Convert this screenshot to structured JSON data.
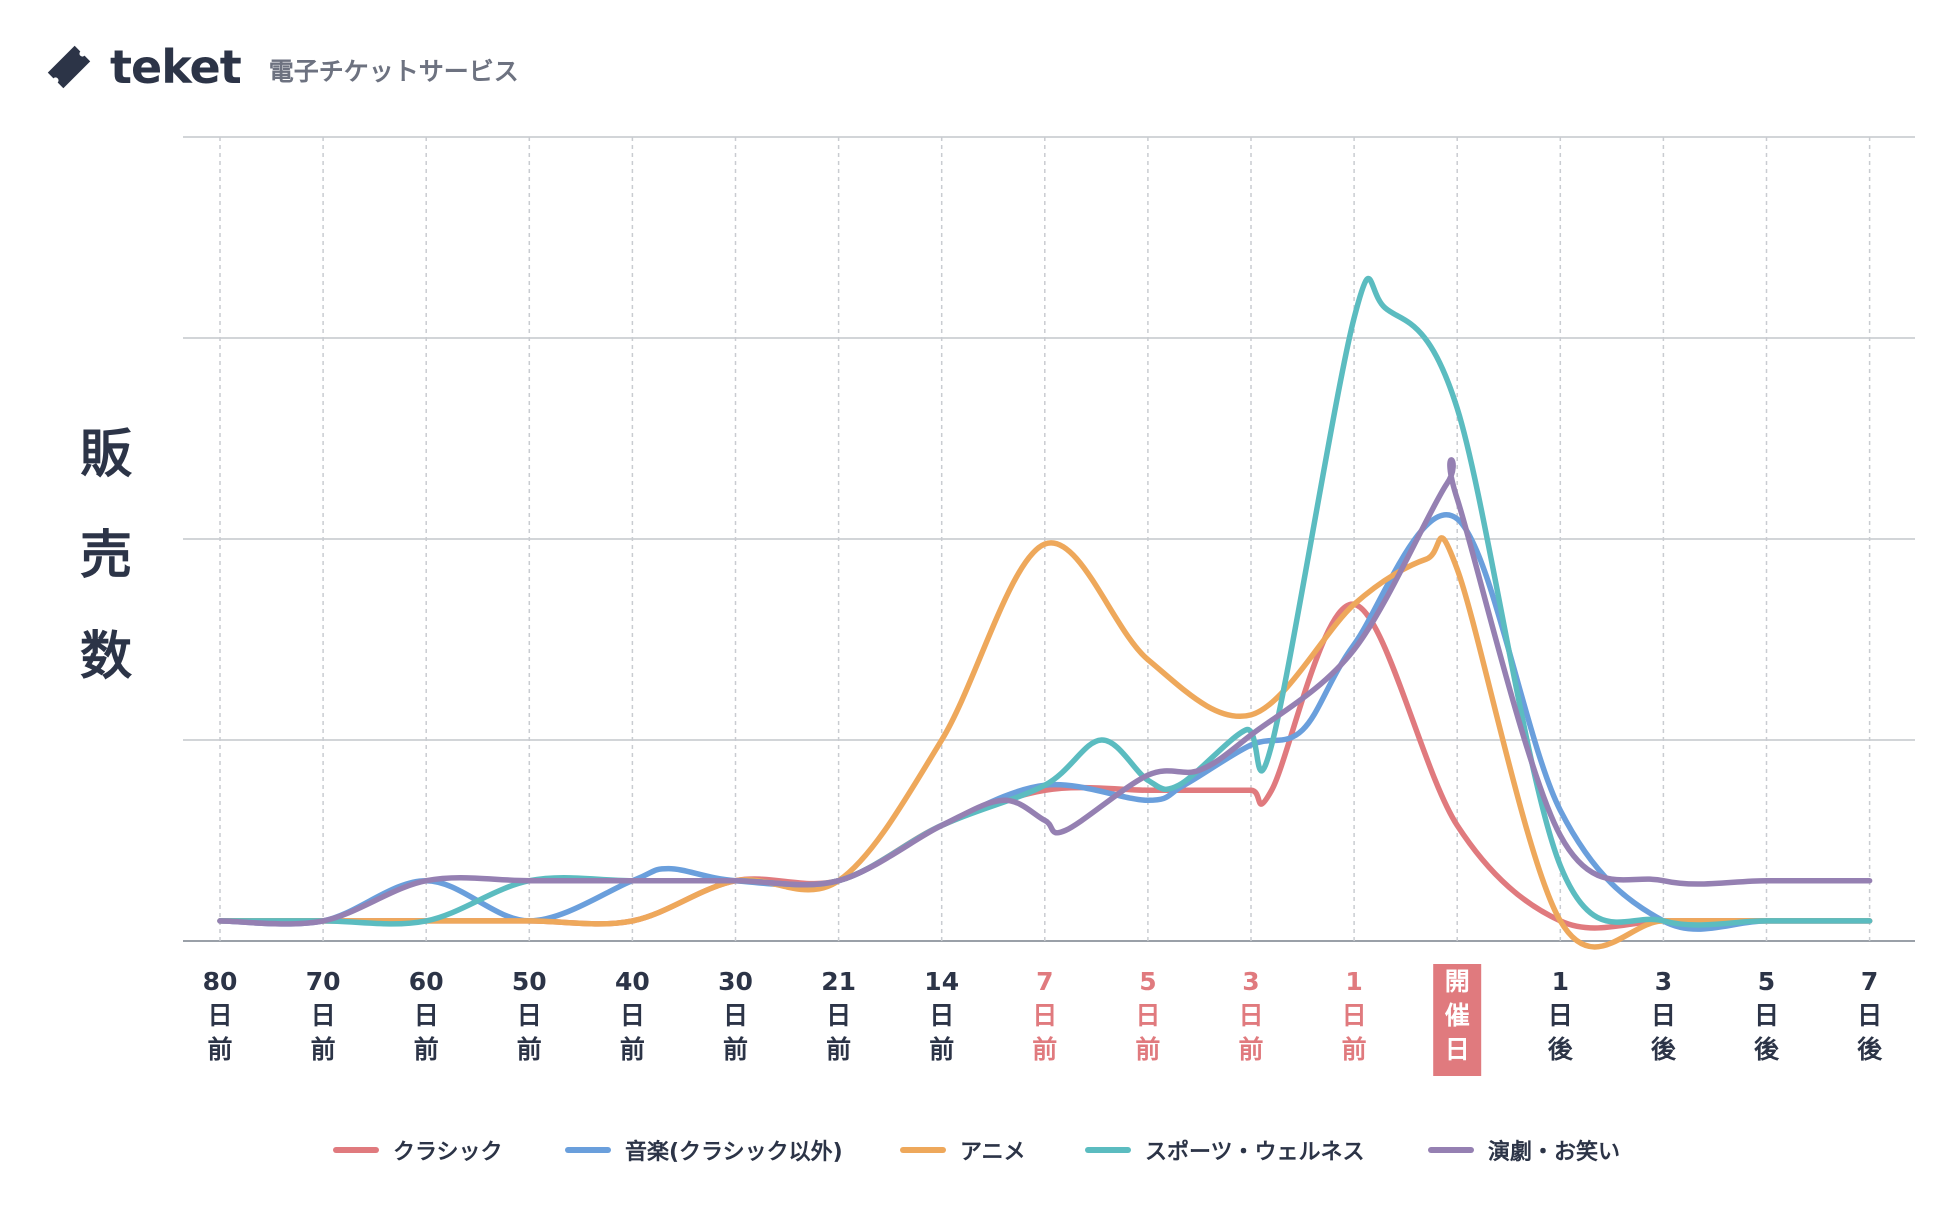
{
  "header": {
    "brand_name": "teket",
    "brand_tagline": "電子チケットサービス"
  },
  "chart_data": {
    "type": "line",
    "ylabel": "販売数",
    "ylabel_chars": [
      "販",
      "売",
      "数"
    ],
    "ylim": [
      0,
      8
    ],
    "y_gridlines": [
      0,
      2,
      4,
      6,
      8
    ],
    "categories": [
      "80日前",
      "70日前",
      "60日前",
      "50日前",
      "40日前",
      "30日前",
      "21日前",
      "14日前",
      "7日前",
      "5日前",
      "3日前",
      "1日前",
      "開催日",
      "1日後",
      "3日後",
      "5日後",
      "7日後"
    ],
    "tick_labels": [
      {
        "lines": [
          "80",
          "日",
          "前"
        ],
        "highlight": "none"
      },
      {
        "lines": [
          "70",
          "日",
          "前"
        ],
        "highlight": "none"
      },
      {
        "lines": [
          "60",
          "日",
          "前"
        ],
        "highlight": "none"
      },
      {
        "lines": [
          "50",
          "日",
          "前"
        ],
        "highlight": "none"
      },
      {
        "lines": [
          "40",
          "日",
          "前"
        ],
        "highlight": "none"
      },
      {
        "lines": [
          "30",
          "日",
          "前"
        ],
        "highlight": "none"
      },
      {
        "lines": [
          "21",
          "日",
          "前"
        ],
        "highlight": "none"
      },
      {
        "lines": [
          "14",
          "日",
          "前"
        ],
        "highlight": "none"
      },
      {
        "lines": [
          "7",
          "日",
          "前"
        ],
        "highlight": "pink"
      },
      {
        "lines": [
          "5",
          "日",
          "前"
        ],
        "highlight": "pink"
      },
      {
        "lines": [
          "3",
          "日",
          "前"
        ],
        "highlight": "pink"
      },
      {
        "lines": [
          "1",
          "日",
          "前"
        ],
        "highlight": "pink"
      },
      {
        "lines": [
          "開",
          "催",
          "日"
        ],
        "highlight": "box"
      },
      {
        "lines": [
          "1",
          "日",
          "後"
        ],
        "highlight": "none"
      },
      {
        "lines": [
          "3",
          "日",
          "後"
        ],
        "highlight": "none"
      },
      {
        "lines": [
          "5",
          "日",
          "後"
        ],
        "highlight": "none"
      },
      {
        "lines": [
          "7",
          "日",
          "後"
        ],
        "highlight": "none"
      }
    ],
    "x_index": [
      0,
      1,
      2,
      3,
      4,
      5,
      6,
      7,
      8,
      9,
      10,
      11,
      12,
      13,
      14,
      15,
      16
    ],
    "series": [
      {
        "name": "クラシック",
        "color": "#e07a7e",
        "points": [
          [
            0,
            0.2
          ],
          [
            1,
            0.2
          ],
          [
            2,
            0.2
          ],
          [
            3,
            0.2
          ],
          [
            4,
            0.2
          ],
          [
            5,
            0.6
          ],
          [
            6,
            0.6
          ],
          [
            7,
            1.15
          ],
          [
            8,
            1.5
          ],
          [
            9,
            1.5
          ],
          [
            9.5,
            1.5
          ],
          [
            10,
            1.5
          ],
          [
            10.2,
            1.5
          ],
          [
            11,
            3.35
          ],
          [
            12,
            1.15
          ],
          [
            13,
            0.2
          ],
          [
            14,
            0.2
          ],
          [
            15,
            0.2
          ],
          [
            16,
            0.2
          ]
        ]
      },
      {
        "name": "音楽(クラシック以外)",
        "color": "#6a9fdc",
        "points": [
          [
            0,
            0.2
          ],
          [
            1,
            0.2
          ],
          [
            2,
            0.6
          ],
          [
            3,
            0.2
          ],
          [
            4,
            0.6
          ],
          [
            4.35,
            0.72
          ],
          [
            5,
            0.6
          ],
          [
            6,
            0.6
          ],
          [
            7,
            1.15
          ],
          [
            8,
            1.55
          ],
          [
            9,
            1.4
          ],
          [
            9.35,
            1.55
          ],
          [
            10,
            1.95
          ],
          [
            10.5,
            2.1
          ],
          [
            11,
            2.95
          ],
          [
            12,
            4.2
          ],
          [
            13,
            1.3
          ],
          [
            14,
            0.2
          ],
          [
            15,
            0.2
          ],
          [
            16,
            0.2
          ]
        ]
      },
      {
        "name": "アニメ",
        "color": "#eea85b",
        "points": [
          [
            0,
            0.2
          ],
          [
            1,
            0.2
          ],
          [
            2,
            0.2
          ],
          [
            3,
            0.2
          ],
          [
            4,
            0.2
          ],
          [
            5,
            0.6
          ],
          [
            6,
            0.6
          ],
          [
            7,
            2.0
          ],
          [
            8,
            3.95
          ],
          [
            9,
            2.8
          ],
          [
            10,
            2.25
          ],
          [
            11,
            3.35
          ],
          [
            11.7,
            3.8
          ],
          [
            12,
            3.7
          ],
          [
            13,
            0.2
          ],
          [
            14,
            0.2
          ],
          [
            15,
            0.2
          ],
          [
            16,
            0.2
          ]
        ]
      },
      {
        "name": "スポーツ・ウェルネス",
        "color": "#5bbcc0",
        "points": [
          [
            0,
            0.2
          ],
          [
            1,
            0.2
          ],
          [
            2,
            0.2
          ],
          [
            3,
            0.6
          ],
          [
            4,
            0.6
          ],
          [
            5,
            0.6
          ],
          [
            6,
            0.6
          ],
          [
            7,
            1.15
          ],
          [
            8,
            1.55
          ],
          [
            8.55,
            2.0
          ],
          [
            9,
            1.6
          ],
          [
            9.3,
            1.55
          ],
          [
            9.95,
            2.1
          ],
          [
            10.2,
            1.95
          ],
          [
            11,
            6.2
          ],
          [
            11.3,
            6.3
          ],
          [
            12,
            5.3
          ],
          [
            13,
            0.75
          ],
          [
            14,
            0.2
          ],
          [
            15,
            0.2
          ],
          [
            16,
            0.2
          ]
        ]
      },
      {
        "name": "演劇・お笑い",
        "color": "#9580b2",
        "points": [
          [
            0,
            0.2
          ],
          [
            1,
            0.2
          ],
          [
            2,
            0.6
          ],
          [
            3,
            0.6
          ],
          [
            4,
            0.6
          ],
          [
            5,
            0.6
          ],
          [
            6,
            0.6
          ],
          [
            7,
            1.15
          ],
          [
            7.6,
            1.4
          ],
          [
            8,
            1.2
          ],
          [
            8.2,
            1.1
          ],
          [
            9,
            1.65
          ],
          [
            9.5,
            1.7
          ],
          [
            10,
            2.05
          ],
          [
            11,
            2.9
          ],
          [
            11.9,
            4.55
          ],
          [
            12,
            4.4
          ],
          [
            13,
            1.05
          ],
          [
            14,
            0.6
          ],
          [
            15,
            0.6
          ],
          [
            16,
            0.6
          ]
        ]
      }
    ],
    "legend_position": "bottom-center"
  }
}
